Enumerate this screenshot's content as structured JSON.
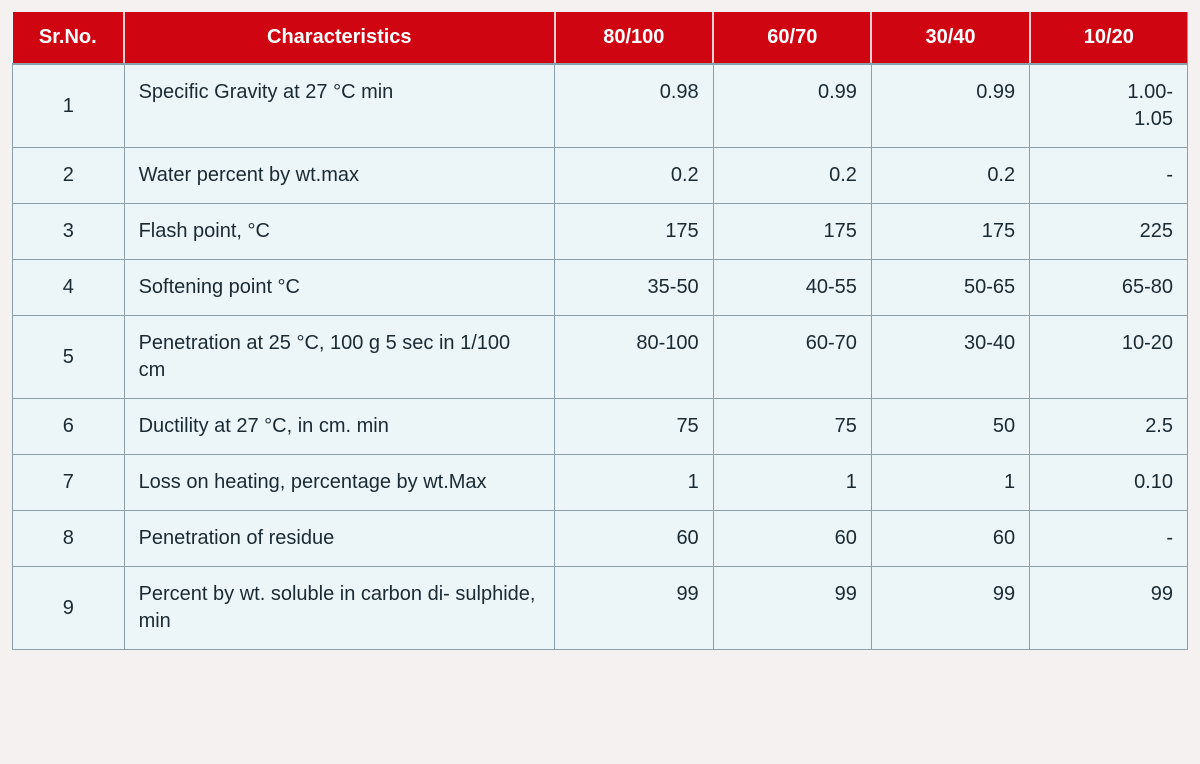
{
  "table": {
    "type": "table",
    "background_color": "#ecf5f8",
    "header_bg": "#cf0512",
    "header_text_color": "#ffffff",
    "border_color": "#8aa0aa",
    "headers": {
      "sr": "Sr.No.",
      "char": "Characteristics",
      "g1": "80/100",
      "g2": "60/70",
      "g3": "30/40",
      "g4": "10/20"
    },
    "rows": [
      {
        "sr": "1",
        "char": "Specific Gravity at 27 °C min",
        "v1": "0.98",
        "v2": "0.99",
        "v3": "0.99",
        "v4": "1.00-\n1.05"
      },
      {
        "sr": "2",
        "char": "Water percent by wt.max",
        "v1": "0.2",
        "v2": "0.2",
        "v3": "0.2",
        "v4": "-"
      },
      {
        "sr": "3",
        "char": "Flash point, °C",
        "v1": "175",
        "v2": "175",
        "v3": "175",
        "v4": "225"
      },
      {
        "sr": "4",
        "char": "Softening point °C",
        "v1": "35-50",
        "v2": "40-55",
        "v3": "50-65",
        "v4": "65-80"
      },
      {
        "sr": "5",
        "char": "Penetration at 25 °C, 100 g 5 sec in 1/100 cm",
        "v1": "80-100",
        "v2": "60-70",
        "v3": "30-40",
        "v4": "10-20"
      },
      {
        "sr": "6",
        "char": "Ductility at 27 °C, in cm. min",
        "v1": "75",
        "v2": "75",
        "v3": "50",
        "v4": "2.5"
      },
      {
        "sr": "7",
        "char": "Loss on heating, percentage by wt.Max",
        "v1": "1",
        "v2": "1",
        "v3": "1",
        "v4": "0.10"
      },
      {
        "sr": "8",
        "char": "Penetration of residue",
        "v1": "60",
        "v2": "60",
        "v3": "60",
        "v4": "-"
      },
      {
        "sr": "9",
        "char": "Percent by wt. soluble in carbon di- sulphide, min",
        "v1": "99",
        "v2": "99",
        "v3": "99",
        "v4": "99"
      }
    ]
  }
}
